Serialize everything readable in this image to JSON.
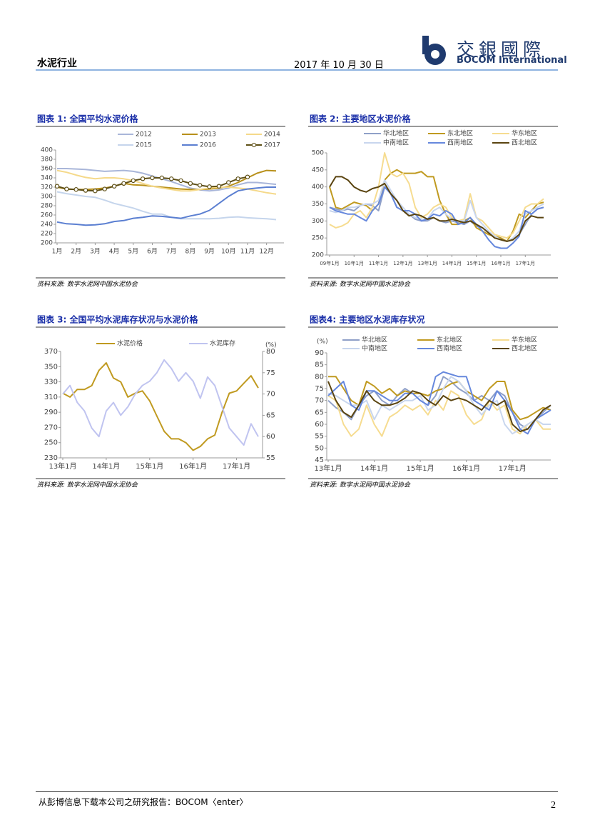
{
  "header": {
    "title": "水泥行业",
    "date": "2017 年 10 月 30 日",
    "logo_cn": "交銀國際",
    "logo_en": "BOCOM International"
  },
  "chart_data": [
    {
      "type": "line",
      "title": "图表 1: 全国平均水泥价格",
      "source": "资料来源: 数字水泥网中国水泥协会",
      "categories": [
        "1月",
        null,
        "2月",
        null,
        "3月",
        null,
        "4月",
        null,
        "5月",
        null,
        "6月",
        null,
        "7月",
        null,
        "8月",
        null,
        "9月",
        null,
        "10月",
        null,
        "11月",
        null,
        "12月",
        null
      ],
      "ylim": [
        200,
        400
      ],
      "yticks": [
        200,
        220,
        240,
        260,
        280,
        300,
        320,
        340,
        360,
        380,
        400
      ],
      "series": [
        {
          "name": "2012",
          "color": "#a9b6d9",
          "values": [
            360,
            360,
            359,
            358,
            356,
            354,
            355,
            356,
            354,
            350,
            344,
            338,
            332,
            325,
            318,
            314,
            312,
            314,
            318,
            325,
            330,
            330,
            328,
            326
          ]
        },
        {
          "name": "2013",
          "color": "#b8901a",
          "values": [
            320,
            316,
            315,
            315,
            316,
            318,
            322,
            328,
            325,
            324,
            322,
            320,
            318,
            316,
            315,
            315,
            316,
            318,
            322,
            330,
            340,
            350,
            356,
            355
          ]
        },
        {
          "name": "2014",
          "color": "#f5d98a",
          "values": [
            356,
            352,
            346,
            341,
            338,
            340,
            340,
            338,
            334,
            328,
            322,
            318,
            315,
            312,
            312,
            315,
            318,
            320,
            320,
            318,
            316,
            312,
            308,
            305
          ]
        },
        {
          "name": "2015",
          "color": "#c5d5ec",
          "values": [
            310,
            306,
            303,
            300,
            298,
            292,
            285,
            280,
            275,
            268,
            262,
            262,
            255,
            252,
            252,
            252,
            252,
            253,
            255,
            256,
            254,
            253,
            252,
            250
          ]
        },
        {
          "name": "2016",
          "color": "#5b7fd1",
          "values": [
            245,
            241,
            240,
            238,
            239,
            241,
            246,
            248,
            253,
            255,
            258,
            257,
            255,
            253,
            258,
            262,
            270,
            285,
            300,
            312,
            316,
            318,
            320,
            320
          ]
        },
        {
          "name": "2017",
          "color": "#5e4f16",
          "marker": "circle",
          "values": [
            322,
            316,
            315,
            313,
            312,
            316,
            322,
            328,
            334,
            338,
            340,
            340,
            338,
            334,
            328,
            324,
            321,
            322,
            330,
            338,
            342,
            null,
            null,
            null
          ]
        }
      ]
    },
    {
      "type": "line",
      "title": "图表 2: 主要地区水泥价格",
      "source": "资料来源: 数字水泥网中国水泥协会",
      "categories": [
        "09年1月",
        null,
        null,
        null,
        "10年1月",
        null,
        null,
        null,
        "11年1月",
        null,
        null,
        null,
        "12年1月",
        null,
        null,
        null,
        "13年1月",
        null,
        null,
        null,
        "14年1月",
        null,
        null,
        null,
        "15年1月",
        null,
        null,
        null,
        "16年1月",
        null,
        null,
        null,
        "17年1月",
        null,
        null,
        null
      ],
      "ylim": [
        200,
        500
      ],
      "yticks": [
        200,
        250,
        300,
        350,
        400,
        450,
        500
      ],
      "series": [
        {
          "name": "华北地区",
          "color": "#8fa0c8",
          "values": [
            340,
            335,
            330,
            335,
            330,
            345,
            350,
            345,
            330,
            400,
            380,
            340,
            330,
            320,
            305,
            300,
            300,
            310,
            300,
            295,
            300,
            295,
            290,
            300,
            285,
            280,
            265,
            255,
            250,
            240,
            245,
            260,
            290,
            320,
            335,
            340
          ]
        },
        {
          "name": "东北地区",
          "color": "#c09a20",
          "values": [
            400,
            340,
            335,
            345,
            355,
            350,
            345,
            330,
            350,
            420,
            440,
            450,
            440,
            440,
            440,
            445,
            430,
            430,
            360,
            320,
            290,
            290,
            300,
            310,
            280,
            270,
            260,
            255,
            250,
            240,
            270,
            320,
            310,
            330,
            350,
            355
          ]
        },
        {
          "name": "华东地区",
          "color": "#f6dc90",
          "values": [
            290,
            280,
            285,
            295,
            320,
            330,
            310,
            340,
            400,
            500,
            440,
            430,
            440,
            410,
            340,
            310,
            320,
            340,
            350,
            340,
            310,
            300,
            305,
            380,
            310,
            300,
            280,
            260,
            255,
            250,
            265,
            300,
            340,
            350,
            350,
            365
          ]
        },
        {
          "name": "中南地区",
          "color": "#c8d6ee",
          "values": [
            330,
            325,
            330,
            340,
            340,
            345,
            350,
            350,
            360,
            420,
            390,
            360,
            340,
            320,
            310,
            305,
            305,
            330,
            340,
            320,
            305,
            300,
            300,
            360,
            310,
            290,
            270,
            255,
            245,
            240,
            250,
            270,
            320,
            330,
            340,
            350
          ]
        },
        {
          "name": "西南地区",
          "color": "#6688dd",
          "values": [
            340,
            330,
            325,
            320,
            320,
            310,
            300,
            330,
            350,
            400,
            380,
            340,
            330,
            330,
            320,
            300,
            305,
            320,
            315,
            330,
            320,
            290,
            295,
            310,
            290,
            270,
            245,
            225,
            220,
            220,
            235,
            255,
            330,
            320,
            335,
            340
          ]
        },
        {
          "name": "西北地区",
          "color": "#5a4410",
          "values": [
            400,
            430,
            430,
            420,
            400,
            390,
            385,
            395,
            400,
            410,
            380,
            360,
            330,
            315,
            320,
            315,
            305,
            310,
            300,
            300,
            305,
            300,
            295,
            300,
            290,
            280,
            265,
            250,
            245,
            240,
            245,
            260,
            300,
            315,
            310,
            310
          ]
        }
      ]
    },
    {
      "type": "line",
      "title": "图表 3: 全国平均水泥库存状况与水泥价格",
      "source": "资料来源: 数字水泥网中国水泥协会",
      "categories": [
        "13年1月",
        null,
        null,
        null,
        null,
        null,
        "14年1月",
        null,
        null,
        null,
        null,
        null,
        "15年1月",
        null,
        null,
        null,
        null,
        null,
        "16年1月",
        null,
        null,
        null,
        null,
        null,
        "17年1月",
        null,
        null,
        null
      ],
      "ylim": [
        230,
        370
      ],
      "yticks": [
        230,
        250,
        270,
        290,
        310,
        330,
        350,
        370
      ],
      "y2label": "(%)",
      "y2lim": [
        55,
        80
      ],
      "y2ticks": [
        55,
        60,
        65,
        70,
        75,
        80
      ],
      "series": [
        {
          "name": "水泥价格",
          "color": "#c09a20",
          "values": [
            315,
            310,
            320,
            320,
            325,
            345,
            355,
            335,
            330,
            310,
            315,
            318,
            305,
            285,
            265,
            255,
            255,
            250,
            240,
            245,
            255,
            260,
            290,
            315,
            318,
            328,
            338,
            322
          ]
        },
        {
          "name": "水泥库存",
          "color": "#c0c4f0",
          "axis": "y2",
          "values": [
            70,
            72,
            68,
            66,
            62,
            60,
            66,
            68,
            65,
            67,
            70,
            72,
            73,
            75,
            78,
            76,
            73,
            75,
            73,
            69,
            74,
            72,
            67,
            62,
            60,
            58,
            63,
            60
          ]
        }
      ]
    },
    {
      "type": "line",
      "title": "图表4: 主要地区水泥库存状况",
      "source": "资料来源: 数字水泥网中国水泥协会",
      "categories": [
        "13年1月",
        null,
        null,
        null,
        null,
        null,
        "14年1月",
        null,
        null,
        null,
        null,
        null,
        "15年1月",
        null,
        null,
        null,
        null,
        null,
        "16年1月",
        null,
        null,
        null,
        null,
        null,
        "17年1月",
        null,
        null,
        null,
        null,
        null
      ],
      "ylabel": "(%)",
      "ylim": [
        45,
        90
      ],
      "yticks": [
        45,
        50,
        55,
        60,
        65,
        70,
        75,
        80,
        85,
        90
      ],
      "series": [
        {
          "name": "华北地区",
          "color": "#8fa0c8",
          "values": [
            70,
            67,
            65,
            62,
            68,
            72,
            74,
            70,
            68,
            72,
            75,
            73,
            70,
            68,
            72,
            80,
            78,
            75,
            73,
            70,
            72,
            70,
            74,
            72,
            65,
            60,
            58,
            62,
            65,
            68
          ]
        },
        {
          "name": "东北地区",
          "color": "#c09a20",
          "values": [
            80,
            80,
            75,
            70,
            68,
            78,
            76,
            73,
            75,
            72,
            74,
            73,
            73,
            72,
            74,
            75,
            77,
            78,
            74,
            72,
            70,
            75,
            78,
            78,
            66,
            62,
            63,
            65,
            67,
            66
          ]
        },
        {
          "name": "华东地区",
          "color": "#f6dc90",
          "values": [
            72,
            70,
            60,
            55,
            58,
            68,
            60,
            55,
            63,
            65,
            68,
            66,
            68,
            64,
            70,
            66,
            74,
            72,
            64,
            60,
            62,
            70,
            66,
            68,
            58,
            56,
            60,
            62,
            58,
            58
          ]
        },
        {
          "name": "中南地区",
          "color": "#c8d6ee",
          "values": [
            73,
            72,
            70,
            68,
            68,
            70,
            62,
            68,
            66,
            68,
            70,
            70,
            72,
            66,
            68,
            75,
            80,
            78,
            74,
            68,
            64,
            68,
            70,
            60,
            56,
            58,
            60,
            62,
            60,
            60
          ]
        },
        {
          "name": "西南地区",
          "color": "#6688dd",
          "values": [
            72,
            75,
            78,
            68,
            66,
            74,
            74,
            72,
            70,
            70,
            73,
            73,
            70,
            68,
            80,
            82,
            81,
            80,
            80,
            70,
            68,
            66,
            74,
            70,
            65,
            58,
            56,
            62,
            64,
            66
          ]
        },
        {
          "name": "西北地区",
          "color": "#5a4410",
          "values": [
            78,
            70,
            65,
            63,
            68,
            74,
            70,
            68,
            68,
            69,
            71,
            74,
            73,
            70,
            68,
            72,
            70,
            71,
            70,
            68,
            66,
            70,
            68,
            70,
            60,
            57,
            58,
            62,
            66,
            68
          ]
        }
      ]
    }
  ],
  "footer": {
    "text": "从彭博信息下载本公司之研究报告：BOCOM〈enter〉",
    "page": "2"
  }
}
